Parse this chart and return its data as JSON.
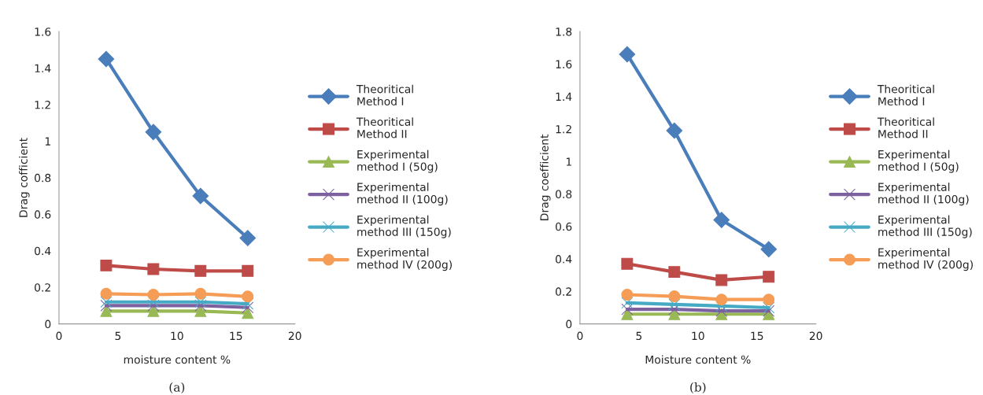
{
  "chart_data": [
    {
      "type": "line",
      "xlabel": "moisture content %",
      "ylabel": "Drag cofficient",
      "x": [
        4,
        8,
        12,
        16
      ],
      "xlim": [
        0,
        20
      ],
      "xticks": [
        0,
        5,
        10,
        15,
        20
      ],
      "ylim": [
        0,
        1.6
      ],
      "yticks": [
        0,
        0.2,
        0.4,
        0.6,
        0.8,
        1,
        1.2,
        1.4,
        1.6
      ],
      "legend": "right",
      "grid": false,
      "annotations": [
        "(a)"
      ],
      "series": [
        {
          "name": "Theoritical Method I",
          "color": "#4a7ebb",
          "marker": "diamond",
          "values": [
            1.45,
            1.05,
            0.7,
            0.47
          ]
        },
        {
          "name": "Theoritical Method II",
          "color": "#be4b48",
          "marker": "square",
          "values": [
            0.32,
            0.3,
            0.29,
            0.29
          ]
        },
        {
          "name": "Experimental method I (50g)",
          "color": "#98b954",
          "marker": "triangle",
          "values": [
            0.07,
            0.07,
            0.07,
            0.06
          ]
        },
        {
          "name": "Experimental method II (100g)",
          "color": "#7d60a0",
          "marker": "cross",
          "values": [
            0.1,
            0.1,
            0.1,
            0.09
          ]
        },
        {
          "name": "Experimental method III (150g)",
          "color": "#46aac5",
          "marker": "cross",
          "values": [
            0.12,
            0.12,
            0.12,
            0.11
          ]
        },
        {
          "name": "Experimental method IV (200g)",
          "color": "#f59d56",
          "marker": "circle",
          "values": [
            0.165,
            0.16,
            0.165,
            0.15
          ]
        }
      ]
    },
    {
      "type": "line",
      "xlabel": "Moisture content %",
      "ylabel": "Drag coefficient",
      "x": [
        4,
        8,
        12,
        16
      ],
      "xlim": [
        0,
        20
      ],
      "xticks": [
        0,
        5,
        10,
        15,
        20
      ],
      "ylim": [
        0,
        1.8
      ],
      "yticks": [
        0,
        0.2,
        0.4,
        0.6,
        0.8,
        1,
        1.2,
        1.4,
        1.6,
        1.8
      ],
      "legend": "right",
      "grid": false,
      "annotations": [
        "(b)"
      ],
      "series": [
        {
          "name": "Theoritical Method I",
          "color": "#4a7ebb",
          "marker": "diamond",
          "values": [
            1.66,
            1.19,
            0.64,
            0.46
          ]
        },
        {
          "name": "Theoritical Method II",
          "color": "#be4b48",
          "marker": "square",
          "values": [
            0.37,
            0.32,
            0.27,
            0.29
          ]
        },
        {
          "name": "Experimental method I (50g)",
          "color": "#98b954",
          "marker": "triangle",
          "values": [
            0.06,
            0.06,
            0.06,
            0.06
          ]
        },
        {
          "name": "Experimental method II (100g)",
          "color": "#7d60a0",
          "marker": "cross",
          "values": [
            0.09,
            0.09,
            0.08,
            0.08
          ]
        },
        {
          "name": "Experimental method III (150g)",
          "color": "#46aac5",
          "marker": "cross",
          "values": [
            0.13,
            0.12,
            0.11,
            0.1
          ]
        },
        {
          "name": "Experimental method IV (200g)",
          "color": "#f59d56",
          "marker": "circle",
          "values": [
            0.18,
            0.17,
            0.15,
            0.15
          ]
        }
      ]
    }
  ]
}
